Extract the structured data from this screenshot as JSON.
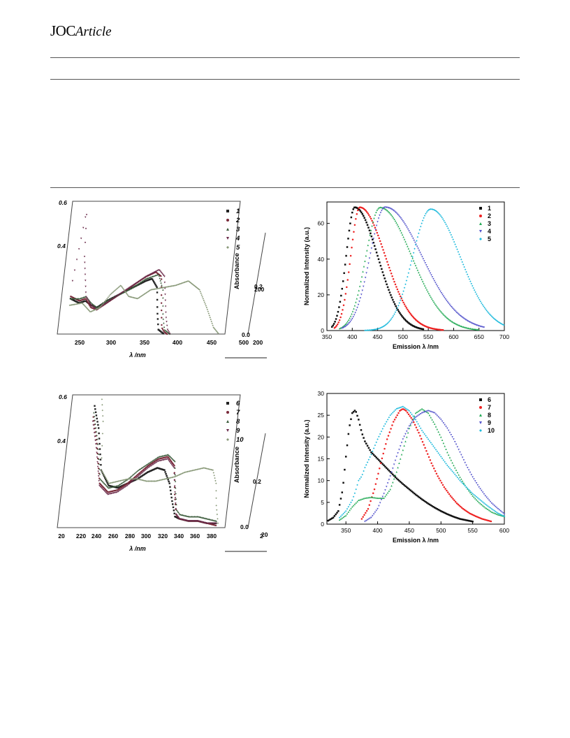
{
  "header": {
    "journal": "JOC",
    "section": "Article"
  },
  "colors": {
    "black": "#111111",
    "red": "#ee2222",
    "green": "#22aa55",
    "blue": "#5555cc",
    "cyan": "#22bbdd"
  },
  "chart_data": [
    {
      "id": "absorbance-top",
      "type": "scatter",
      "xlabel": "λ /nm",
      "ylabel": "Absorbance",
      "x_ticks": [
        "250",
        "300",
        "350",
        "400",
        "450",
        "500"
      ],
      "y_ticks_left": [
        "0.6",
        "0.4"
      ],
      "y_ticks_right": [
        "0.0",
        "0.2"
      ],
      "extra_ticks": [
        "200",
        "200"
      ],
      "xlim": [
        225,
        500
      ],
      "ylim": [
        0,
        0.6
      ],
      "legend": [
        "1",
        "2",
        "3",
        "4",
        "5"
      ],
      "legend_position": "top-right",
      "series": [
        {
          "name": "1",
          "x": [
            240,
            255,
            265,
            275,
            285,
            300,
            320,
            340,
            360,
            370,
            380,
            385,
            390,
            395,
            400
          ],
          "y": [
            0.16,
            0.14,
            0.15,
            0.13,
            0.12,
            0.15,
            0.18,
            0.21,
            0.24,
            0.25,
            0.21,
            0.1,
            0.02,
            0.01,
            0.0
          ]
        },
        {
          "name": "2",
          "x": [
            240,
            255,
            265,
            275,
            285,
            300,
            320,
            340,
            360,
            375,
            385,
            390,
            395,
            400,
            405
          ],
          "y": [
            0.17,
            0.15,
            0.16,
            0.12,
            0.11,
            0.14,
            0.18,
            0.22,
            0.26,
            0.28,
            0.26,
            0.14,
            0.03,
            0.01,
            0.0
          ]
        },
        {
          "name": "3",
          "x": [
            240,
            255,
            265,
            275,
            285,
            300,
            320,
            340,
            360,
            380,
            390,
            395,
            400,
            405,
            410
          ],
          "y": [
            0.16,
            0.16,
            0.17,
            0.14,
            0.12,
            0.15,
            0.18,
            0.21,
            0.25,
            0.27,
            0.2,
            0.08,
            0.02,
            0.01,
            0.0
          ]
        },
        {
          "name": "4",
          "x": [
            240,
            250,
            255,
            265,
            275,
            285,
            300,
            320,
            340,
            360,
            380,
            390,
            400,
            405,
            410
          ],
          "y": [
            0.24,
            0.56,
            0.35,
            0.17,
            0.13,
            0.11,
            0.14,
            0.18,
            0.22,
            0.26,
            0.29,
            0.26,
            0.08,
            0.02,
            0.0
          ]
        },
        {
          "name": "5",
          "x": [
            240,
            260,
            275,
            290,
            305,
            320,
            335,
            350,
            370,
            390,
            410,
            430,
            450,
            465,
            480,
            490
          ],
          "y": [
            0.13,
            0.14,
            0.1,
            0.12,
            0.18,
            0.22,
            0.17,
            0.16,
            0.2,
            0.21,
            0.22,
            0.24,
            0.2,
            0.12,
            0.03,
            0.0
          ]
        }
      ]
    },
    {
      "id": "emission-top",
      "type": "scatter",
      "xlabel": "Emission λ /nm",
      "ylabel": "Normalized Intensity (a.u.)",
      "xlim": [
        350,
        700
      ],
      "ylim": [
        0,
        72
      ],
      "x_ticks": [
        350,
        400,
        450,
        500,
        550,
        600,
        650,
        700
      ],
      "y_ticks": [
        0,
        20,
        40,
        60
      ],
      "legend": [
        "1",
        "2",
        "3",
        "4",
        "5"
      ],
      "legend_position": "top-right",
      "series": [
        {
          "name": "1",
          "peak": 405,
          "amplitude": 69,
          "width_left": 17,
          "width_right": 45,
          "x_start": 360,
          "x_end": 540
        },
        {
          "name": "2",
          "peak": 415,
          "amplitude": 69,
          "width_left": 18,
          "width_right": 50,
          "x_start": 365,
          "x_end": 580
        },
        {
          "name": "3",
          "peak": 455,
          "amplitude": 69,
          "width_left": 28,
          "width_right": 62,
          "x_start": 375,
          "x_end": 650
        },
        {
          "name": "4",
          "peak": 465,
          "amplitude": 69,
          "width_left": 30,
          "width_right": 72,
          "x_start": 380,
          "x_end": 660
        },
        {
          "name": "5",
          "peak": 555,
          "amplitude": 68,
          "width_left": 36,
          "width_right": 58,
          "x_start": 425,
          "x_end": 700
        }
      ]
    },
    {
      "id": "absorbance-bottom",
      "type": "scatter",
      "xlabel": "λ /nm",
      "ylabel": "Absorbance",
      "x_ticks": [
        "20",
        "220",
        "240",
        "260",
        "280",
        "300",
        "320",
        "340",
        "360",
        "380"
      ],
      "y_ticks_left": [
        "0.6",
        "0.4"
      ],
      "y_ticks_right": [
        "0.0",
        "0.2"
      ],
      "extra_ticks": [
        "2",
        "20"
      ],
      "xlim": [
        200,
        380
      ],
      "ylim": [
        0,
        0.6
      ],
      "legend": [
        "6",
        "7",
        "8",
        "9",
        "10"
      ],
      "legend_position": "top-right",
      "series": [
        {
          "name": "6",
          "x": [
            225,
            232,
            240,
            250,
            260,
            270,
            280,
            290,
            300,
            308,
            315,
            320,
            325,
            330,
            340,
            350,
            360,
            370
          ],
          "y": [
            0.55,
            0.45,
            0.26,
            0.19,
            0.18,
            0.2,
            0.22,
            0.25,
            0.27,
            0.26,
            0.2,
            0.12,
            0.05,
            0.04,
            0.03,
            0.03,
            0.02,
            0.02
          ]
        },
        {
          "name": "7",
          "x": [
            225,
            232,
            240,
            250,
            260,
            270,
            280,
            290,
            300,
            310,
            318,
            322,
            326,
            330,
            340,
            350,
            360,
            370
          ],
          "y": [
            0.5,
            0.38,
            0.2,
            0.16,
            0.17,
            0.2,
            0.24,
            0.28,
            0.31,
            0.32,
            0.28,
            0.15,
            0.06,
            0.04,
            0.03,
            0.03,
            0.02,
            0.01
          ]
        },
        {
          "name": "8",
          "x": [
            225,
            232,
            240,
            250,
            260,
            270,
            280,
            290,
            300,
            310,
            318,
            322,
            326,
            330,
            340,
            350,
            360,
            370
          ],
          "y": [
            0.52,
            0.4,
            0.22,
            0.18,
            0.19,
            0.22,
            0.26,
            0.29,
            0.32,
            0.33,
            0.3,
            0.18,
            0.08,
            0.06,
            0.05,
            0.05,
            0.04,
            0.03
          ]
        },
        {
          "name": "9",
          "x": [
            225,
            232,
            240,
            250,
            260,
            270,
            280,
            290,
            300,
            310,
            318,
            322,
            326,
            330,
            340,
            350,
            360,
            370
          ],
          "y": [
            0.48,
            0.36,
            0.19,
            0.15,
            0.16,
            0.19,
            0.23,
            0.27,
            0.3,
            0.31,
            0.27,
            0.16,
            0.06,
            0.04,
            0.03,
            0.03,
            0.02,
            0.02
          ]
        },
        {
          "name": "10",
          "x": [
            232,
            236,
            240,
            250,
            260,
            270,
            280,
            290,
            300,
            310,
            320,
            330,
            340,
            350,
            360,
            365,
            368,
            372
          ],
          "y": [
            0.58,
            0.48,
            0.26,
            0.2,
            0.21,
            0.22,
            0.22,
            0.21,
            0.21,
            0.22,
            0.23,
            0.25,
            0.26,
            0.27,
            0.26,
            0.2,
            0.1,
            0.02
          ]
        }
      ]
    },
    {
      "id": "emission-bottom",
      "type": "scatter",
      "xlabel": "Emission λ /nm",
      "ylabel": "Normalized Intensity (a.u.)",
      "xlim": [
        320,
        600
      ],
      "ylim": [
        0,
        30
      ],
      "x_ticks": [
        350,
        400,
        450,
        500,
        550,
        600
      ],
      "y_ticks": [
        0,
        5,
        10,
        15,
        20,
        25,
        30
      ],
      "legend": [
        "6",
        "7",
        "8",
        "9",
        "10"
      ],
      "legend_position": "top-right",
      "series": [
        {
          "name": "6",
          "x": [
            322,
            330,
            338,
            345,
            350,
            355,
            360,
            365,
            370,
            375,
            380,
            390,
            400,
            410,
            420,
            430,
            440,
            450,
            460,
            470,
            480,
            490,
            500,
            510,
            520,
            530,
            540,
            550
          ],
          "y": [
            0.8,
            1.5,
            3.0,
            8.0,
            15.5,
            22.0,
            25.5,
            26.2,
            24.0,
            21.0,
            19.0,
            16.5,
            15.0,
            13.5,
            12.0,
            10.5,
            9.2,
            8.0,
            6.8,
            5.7,
            4.7,
            3.8,
            3.0,
            2.3,
            1.7,
            1.2,
            0.9,
            0.6
          ]
        },
        {
          "name": "7",
          "x": [
            375,
            385,
            395,
            405,
            415,
            425,
            435,
            440,
            445,
            455,
            465,
            475,
            485,
            495,
            505,
            515,
            525,
            535,
            545,
            555,
            565,
            575,
            580
          ],
          "y": [
            1.2,
            3.5,
            8.0,
            14.0,
            19.5,
            23.5,
            26.0,
            26.5,
            26.0,
            24.0,
            21.0,
            17.5,
            14.0,
            11.0,
            8.5,
            6.5,
            4.8,
            3.5,
            2.5,
            1.8,
            1.2,
            0.8,
            0.6
          ]
        },
        {
          "name": "8",
          "x": [
            340,
            350,
            360,
            370,
            380,
            390,
            400,
            410,
            420,
            430,
            440,
            450,
            460,
            470,
            480,
            490,
            500,
            510,
            520,
            530,
            540,
            550,
            560,
            570,
            580,
            590,
            600
          ],
          "y": [
            1.0,
            2.0,
            4.0,
            5.5,
            6.0,
            6.2,
            6.0,
            6.0,
            8.0,
            12.0,
            17.0,
            22.0,
            25.5,
            26.5,
            25.5,
            23.0,
            20.0,
            16.5,
            13.5,
            10.8,
            8.5,
            6.5,
            5.0,
            3.8,
            2.8,
            2.2,
            1.8
          ]
        },
        {
          "name": "9",
          "x": [
            380,
            390,
            400,
            410,
            420,
            430,
            440,
            450,
            460,
            470,
            480,
            490,
            500,
            510,
            520,
            530,
            540,
            550,
            560,
            570,
            580,
            590,
            600
          ],
          "y": [
            0.6,
            1.5,
            3.5,
            7.0,
            11.0,
            15.5,
            19.5,
            22.5,
            24.5,
            25.5,
            26.0,
            25.5,
            24.0,
            22.0,
            19.5,
            16.5,
            13.5,
            10.8,
            8.5,
            6.5,
            4.8,
            3.5,
            2.3
          ]
        },
        {
          "name": "10",
          "x": [
            340,
            350,
            360,
            365,
            370,
            375,
            380,
            390,
            400,
            410,
            420,
            430,
            440,
            450,
            460,
            470,
            480,
            490,
            500,
            510,
            520,
            530,
            540,
            550,
            560,
            570,
            580,
            590,
            600
          ],
          "y": [
            1.5,
            3.0,
            5.5,
            7.5,
            10.0,
            11.0,
            13.0,
            16.0,
            19.5,
            22.5,
            25.0,
            26.5,
            27.0,
            26.0,
            24.0,
            21.5,
            19.5,
            17.5,
            15.5,
            13.5,
            11.8,
            10.0,
            8.5,
            7.0,
            5.8,
            4.6,
            3.5,
            2.5,
            1.8
          ]
        }
      ]
    }
  ]
}
